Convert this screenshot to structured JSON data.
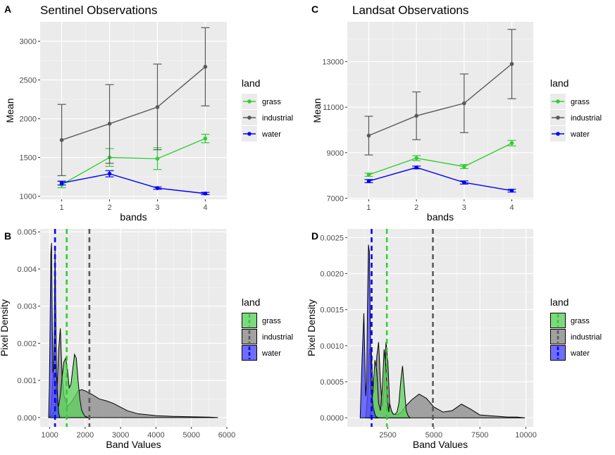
{
  "chart_data": [
    {
      "panel": "A",
      "type": "line",
      "title": "Sentinel Observations",
      "xlabel": "bands",
      "ylabel": "Mean",
      "x": [
        1,
        2,
        3,
        4
      ],
      "xlim": [
        0.55,
        4.45
      ],
      "ylim": [
        960,
        3250
      ],
      "yticks": [
        1000,
        1500,
        2000,
        2500,
        3000
      ],
      "grid": true,
      "legend": {
        "title": "land",
        "position": "right"
      },
      "series": [
        {
          "name": "grass",
          "color": "#33CC33",
          "values": [
            1150,
            1500,
            1485,
            1745
          ],
          "err_low": [
            1110,
            1385,
            1345,
            1690
          ],
          "err_high": [
            1190,
            1615,
            1625,
            1800
          ]
        },
        {
          "name": "industrial",
          "color": "#595959",
          "values": [
            1725,
            1935,
            2150,
            2670
          ],
          "err_low": [
            1265,
            1425,
            1600,
            2165
          ],
          "err_high": [
            2185,
            2440,
            2705,
            3175
          ]
        },
        {
          "name": "water",
          "color": "#0000FF",
          "values": [
            1170,
            1290,
            1105,
            1035
          ],
          "err_low": [
            1145,
            1250,
            1090,
            1020
          ],
          "err_high": [
            1195,
            1330,
            1120,
            1050
          ]
        }
      ]
    },
    {
      "panel": "C",
      "type": "line",
      "title": "Landsat Observations",
      "xlabel": "bands",
      "ylabel": "Mean",
      "x": [
        1,
        2,
        3,
        4
      ],
      "xlim": [
        0.55,
        4.45
      ],
      "ylim": [
        6950,
        14750
      ],
      "yticks": [
        7000,
        9000,
        11000,
        13000
      ],
      "grid": true,
      "legend": {
        "title": "land",
        "position": "right"
      },
      "series": [
        {
          "name": "grass",
          "color": "#33CC33",
          "values": [
            8030,
            8760,
            8390,
            9420
          ],
          "err_low": [
            7960,
            8650,
            8300,
            9300
          ],
          "err_high": [
            8100,
            8870,
            8480,
            9540
          ]
        },
        {
          "name": "industrial",
          "color": "#595959",
          "values": [
            9750,
            10620,
            11170,
            12900
          ],
          "err_low": [
            8900,
            9570,
            9880,
            11370
          ],
          "err_high": [
            10600,
            11670,
            12460,
            14420
          ]
        },
        {
          "name": "water",
          "color": "#0000FF",
          "values": [
            7750,
            8350,
            7690,
            7330
          ],
          "err_low": [
            7680,
            8290,
            7620,
            7270
          ],
          "err_high": [
            7820,
            8410,
            7760,
            7390
          ]
        }
      ]
    },
    {
      "panel": "B",
      "type": "area",
      "title": "",
      "xlabel": "Band Values",
      "ylabel": "Pixel Density",
      "xlim": [
        730,
        6000
      ],
      "ylim": [
        -0.00025,
        0.00508
      ],
      "xticks": [
        1000,
        2000,
        3000,
        4000,
        5000,
        6000
      ],
      "yticks": [
        0,
        0.001,
        0.002,
        0.003,
        0.004,
        0.005
      ],
      "ytick_labels": [
        "0.000",
        "0.001",
        "0.002",
        "0.003",
        "0.004",
        "0.005"
      ],
      "grid": true,
      "legend": {
        "title": "land",
        "position": "right"
      },
      "series": [
        {
          "name": "grass",
          "color": "#33CC33",
          "mean": 1480,
          "x": [
            1000,
            1100,
            1150,
            1200,
            1250,
            1300,
            1350,
            1400,
            1450,
            1500,
            1550,
            1600,
            1650,
            1700,
            1750,
            1800,
            1850,
            1900,
            1950,
            2000,
            2100
          ],
          "y": [
            0,
            0.0001,
            0.0002,
            0.0005,
            0.0003,
            0.0006,
            0.0011,
            0.0015,
            0.0016,
            0.0013,
            0.0008,
            0.0009,
            0.0013,
            0.0017,
            0.0016,
            0.001,
            0.0005,
            0.0002,
            0.0001,
            3e-05,
            0
          ]
        },
        {
          "name": "industrial",
          "color": "#595959",
          "mean": 2120,
          "x": [
            1000,
            1050,
            1100,
            1150,
            1200,
            1250,
            1300,
            1350,
            1400,
            1500,
            1600,
            1700,
            1800,
            1900,
            2000,
            2200,
            2400,
            2600,
            2800,
            3000,
            3200,
            3500,
            4000,
            4500,
            5000,
            5500,
            5750
          ],
          "y": [
            0,
            0.0004,
            0.0012,
            0.001,
            0.0006,
            0.0018,
            0.0024,
            0.0011,
            0.0006,
            0.0003,
            0.0004,
            0.00055,
            0.00072,
            0.00075,
            0.00072,
            0.00062,
            0.0005,
            0.00045,
            0.00038,
            0.00028,
            0.00018,
            0.0001,
            5e-05,
            3e-05,
            2e-05,
            1e-05,
            0
          ]
        },
        {
          "name": "water",
          "color": "#0000FF",
          "mean": 1150,
          "x": [
            970,
            990,
            1010,
            1030,
            1050,
            1070,
            1090,
            1110,
            1130,
            1150,
            1170,
            1190,
            1210,
            1230,
            1250,
            1270,
            1290
          ],
          "y": [
            0,
            0.0008,
            0.0025,
            0.0044,
            0.0047,
            0.0028,
            0.0012,
            0.0013,
            0.0024,
            0.0045,
            0.003,
            0.0012,
            0.0008,
            0.0004,
            0.00015,
            5e-05,
            0
          ]
        }
      ]
    },
    {
      "panel": "D",
      "type": "area",
      "title": "",
      "xlabel": "Band Values",
      "ylabel": "Pixel Density",
      "xlim": [
        300,
        10400
      ],
      "ylim": [
        -0.000125,
        0.00262
      ],
      "xticks": [
        2500,
        5000,
        7500,
        10000
      ],
      "yticks": [
        0,
        0.0005,
        0.001,
        0.0015,
        0.002,
        0.0025
      ],
      "ytick_labels": [
        "0.0000",
        "0.0005",
        "0.0010",
        "0.0015",
        "0.0020",
        "0.0025"
      ],
      "grid": true,
      "legend": {
        "title": "land",
        "position": "right"
      },
      "series": [
        {
          "name": "grass",
          "color": "#33CC33",
          "mean": 2450,
          "x": [
            1500,
            1600,
            1700,
            1800,
            1900,
            2000,
            2100,
            2200,
            2300,
            2400,
            2500,
            2550,
            2600,
            2700,
            2800,
            2900,
            3000,
            3100,
            3200,
            3300,
            3400,
            3500,
            3600,
            3700
          ],
          "y": [
            0,
            0.0001,
            0.0004,
            0.0008,
            0.00065,
            0.0002,
            0.0001,
            0.0004,
            0.00095,
            0.0007,
            0.0002,
            8e-05,
            0.0002,
            0.0001,
            5e-05,
            5e-05,
            8e-05,
            0.0002,
            0.0005,
            0.00072,
            0.0004,
            0.0001,
            3e-05,
            0
          ]
        },
        {
          "name": "industrial",
          "color": "#595959",
          "mean": 4950,
          "x": [
            1300,
            1400,
            1500,
            1600,
            1700,
            1800,
            1900,
            2000,
            2100,
            2200,
            2300,
            2400,
            2500,
            2600,
            2700,
            2800,
            2900,
            3000,
            3200,
            3500,
            3800,
            4200,
            4600,
            5000,
            5500,
            6000,
            6500,
            7000,
            7500,
            8000,
            8500,
            9000,
            9500,
            9950
          ],
          "y": [
            0,
            0.0003,
            0.00095,
            0.00095,
            0.00035,
            0.0004,
            0.00085,
            0.00105,
            0.0005,
            0.00015,
            0.0004,
            0.00105,
            0.0008,
            0.0002,
            8e-05,
            5e-05,
            5e-05,
            4e-05,
            7e-05,
            0.00017,
            0.00025,
            0.00033,
            0.00027,
            0.00015,
            8e-05,
            0.0001,
            0.00019,
            0.00012,
            4e-05,
            3e-05,
            2e-05,
            1e-05,
            1e-05,
            0
          ]
        },
        {
          "name": "water",
          "color": "#0000FF",
          "mean": 1620,
          "x": [
            1000,
            1100,
            1200,
            1300,
            1350,
            1400,
            1450,
            1500,
            1550,
            1600,
            1650,
            1700,
            1750,
            1800,
            1850,
            1900,
            2000
          ],
          "y": [
            0,
            0.0008,
            0.00145,
            0.0003,
            0.0005,
            0.0016,
            0.0024,
            0.0023,
            0.0013,
            0.0004,
            0.0003,
            0.00015,
            0.0001,
            5e-05,
            2e-05,
            1e-05,
            0
          ]
        }
      ]
    }
  ]
}
